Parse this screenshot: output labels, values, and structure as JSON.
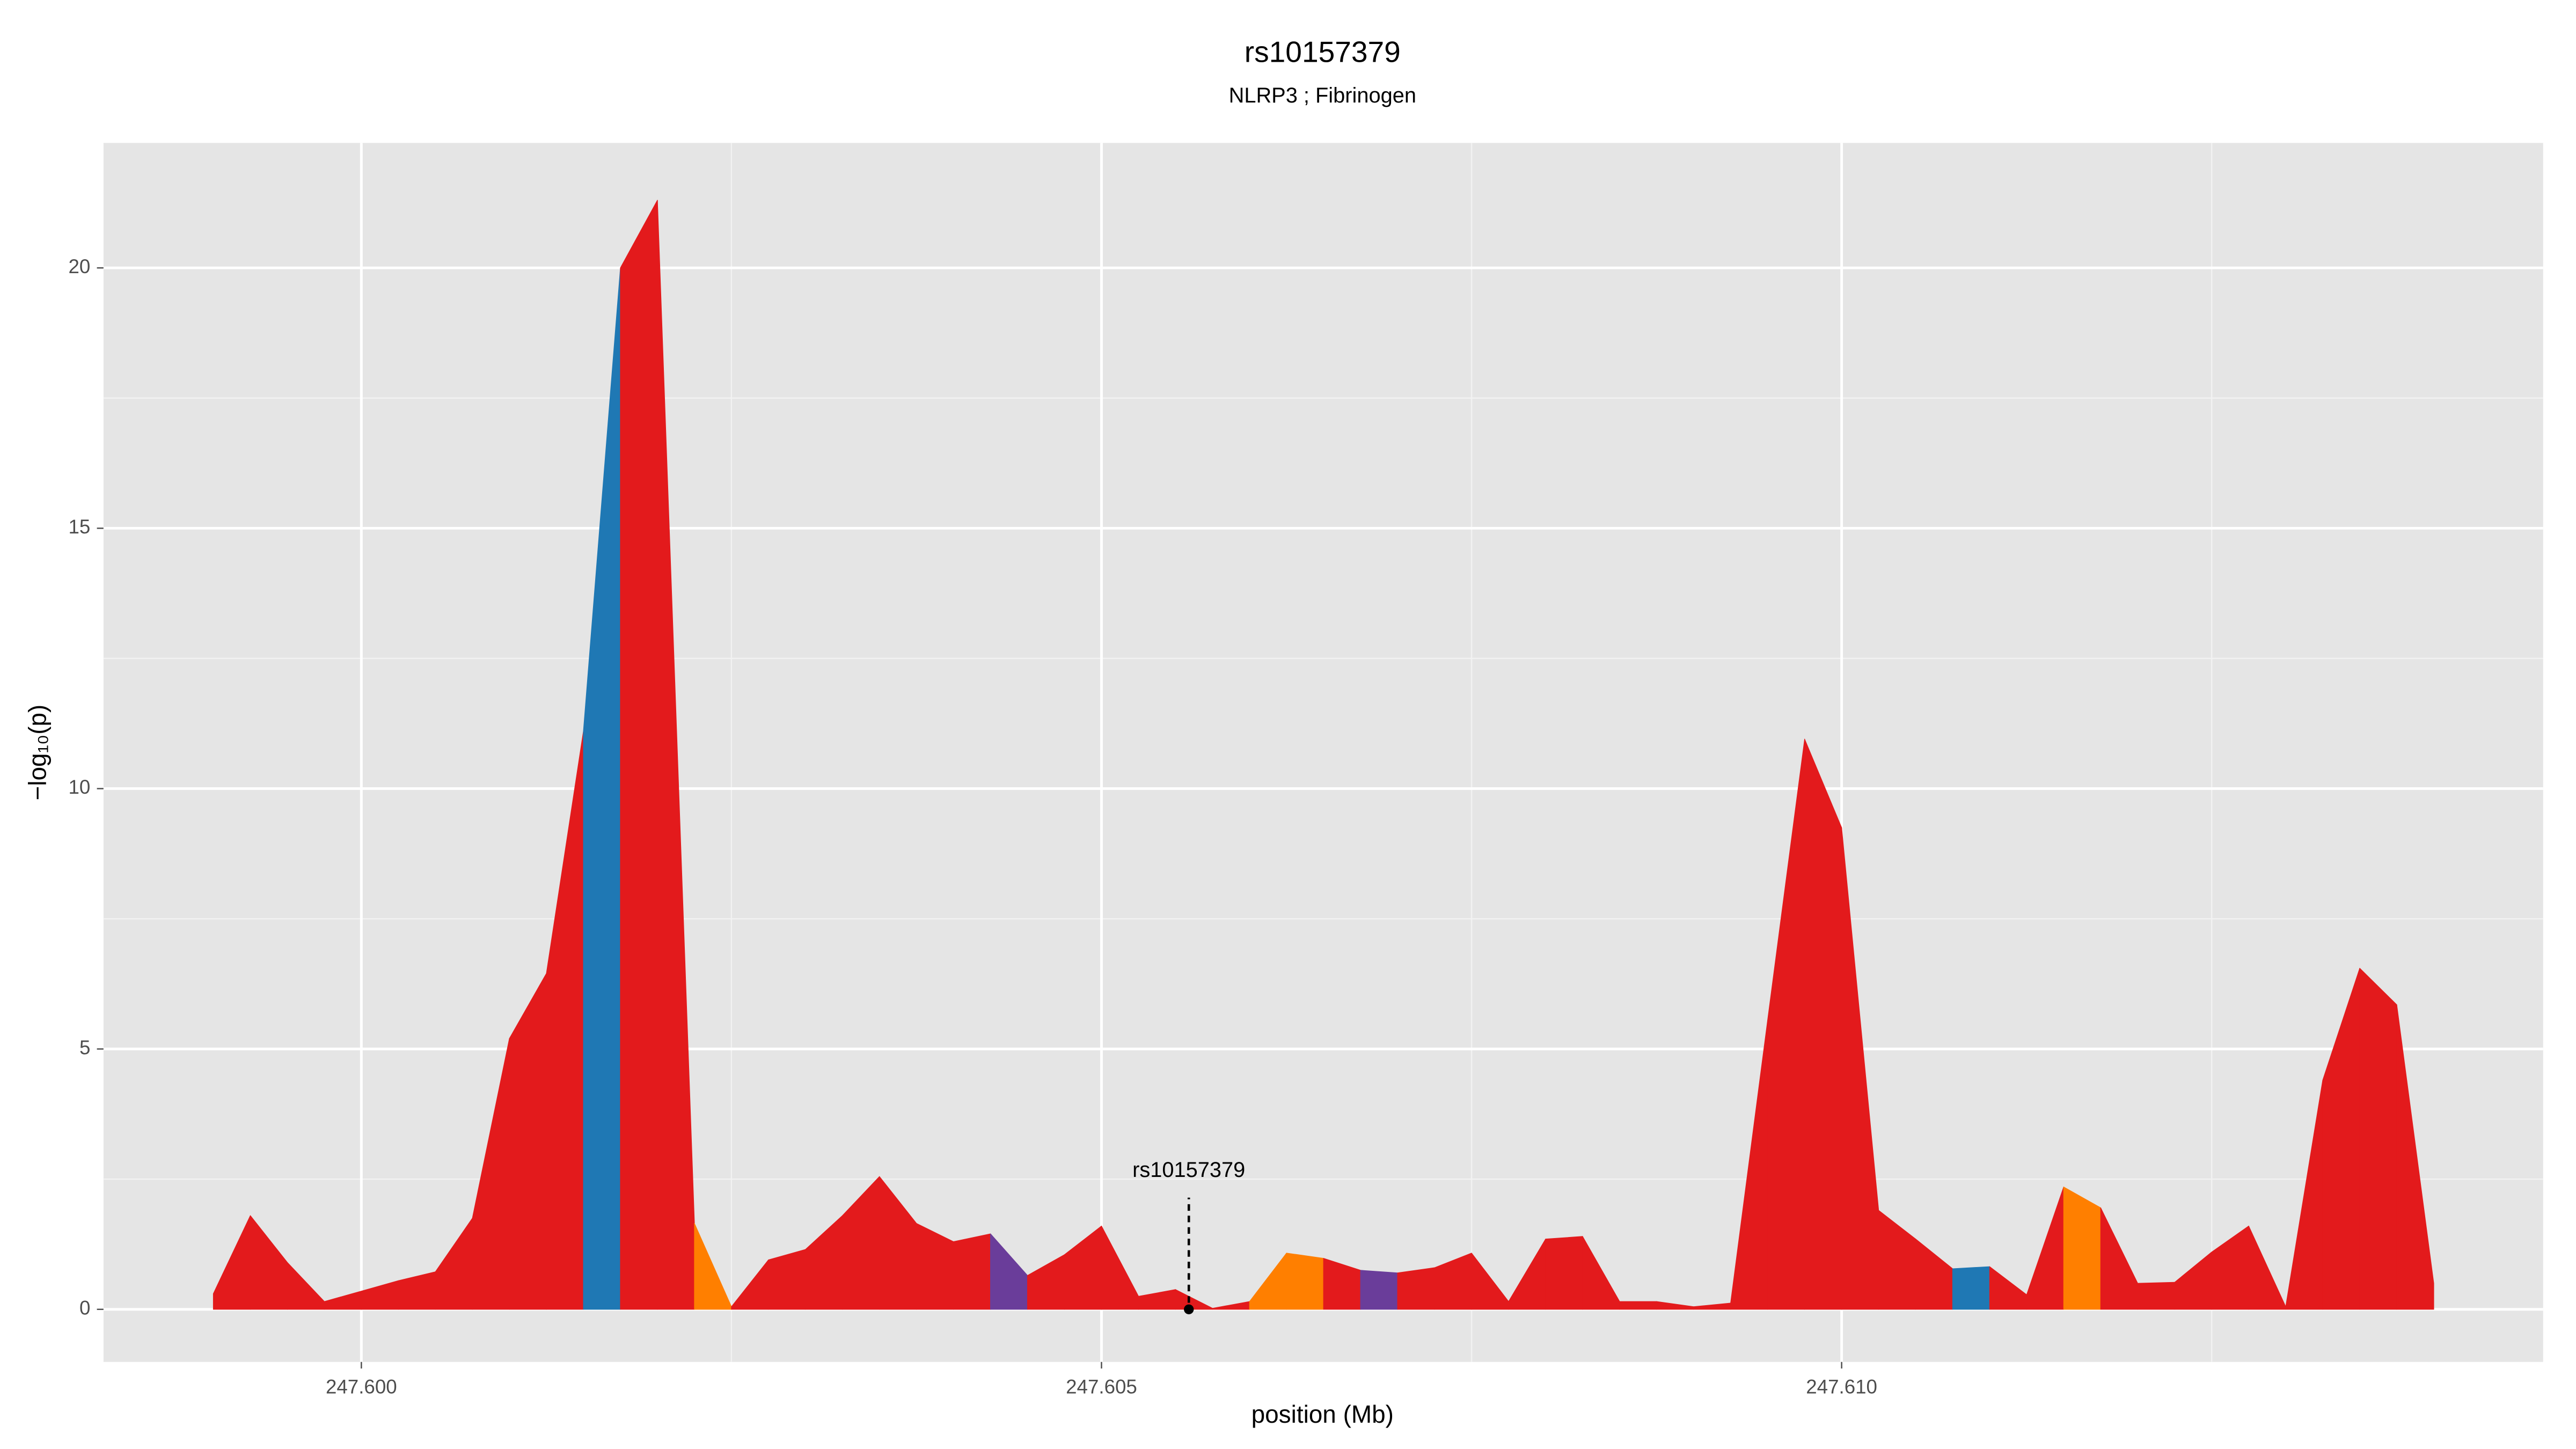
{
  "chart_data": {
    "type": "area",
    "title": "rs10157379",
    "subtitle": "NLRP3 ; Fibrinogen",
    "xlabel": "position (Mb)",
    "ylabel": "−log₁₀(p)",
    "x": [
      247.599,
      247.59925,
      247.5995,
      247.59975,
      247.6,
      247.60025,
      247.6005,
      247.60075,
      247.601,
      247.60125,
      247.6015,
      247.60175,
      247.602,
      247.60225,
      247.6025,
      247.60275,
      247.603,
      247.60325,
      247.6035,
      247.60375,
      247.604,
      247.60425,
      247.6045,
      247.60475,
      247.605,
      247.60525,
      247.6055,
      247.60575,
      247.606,
      247.60625,
      247.6065,
      247.60675,
      247.607,
      247.60725,
      247.6075,
      247.60775,
      247.608,
      247.60825,
      247.6085,
      247.60875,
      247.609,
      247.60925,
      247.6095,
      247.60975,
      247.61,
      247.61025,
      247.6105,
      247.61075,
      247.611,
      247.61125,
      247.6115,
      247.61175,
      247.612,
      247.61225,
      247.6125,
      247.61275,
      247.613,
      247.61325,
      247.6135,
      247.61375,
      247.614
    ],
    "values": [
      0.3,
      1.8,
      0.9,
      0.15,
      0.35,
      0.55,
      0.72,
      1.75,
      5.2,
      6.45,
      11.1,
      20.0,
      21.3,
      1.65,
      0.05,
      0.95,
      1.15,
      1.8,
      2.55,
      1.65,
      1.3,
      1.45,
      0.65,
      1.05,
      1.6,
      0.25,
      0.38,
      0.02,
      0.15,
      1.08,
      0.98,
      0.75,
      0.7,
      0.8,
      1.08,
      0.15,
      1.35,
      1.4,
      0.15,
      0.15,
      0.05,
      0.12,
      5.55,
      10.95,
      9.25,
      1.9,
      1.35,
      0.78,
      0.82,
      0.28,
      2.35,
      1.95,
      0.5,
      0.52,
      1.1,
      1.6,
      0.05,
      4.4,
      6.55,
      5.85,
      0.5
    ],
    "segment_colors": [
      "#e31a1c",
      "#e31a1c",
      "#e31a1c",
      "#e31a1c",
      "#e31a1c",
      "#e31a1c",
      "#e31a1c",
      "#e31a1c",
      "#e31a1c",
      "#e31a1c",
      "#1f78b4",
      "#e31a1c",
      "#e31a1c",
      "#ff7f00",
      "#e31a1c",
      "#e31a1c",
      "#e31a1c",
      "#e31a1c",
      "#e31a1c",
      "#e31a1c",
      "#e31a1c",
      "#6a3d9a",
      "#e31a1c",
      "#e31a1c",
      "#e31a1c",
      "#e31a1c",
      "#e31a1c",
      "#e31a1c",
      "#ff7f00",
      "#ff7f00",
      "#e31a1c",
      "#6a3d9a",
      "#e31a1c",
      "#e31a1c",
      "#e31a1c",
      "#e31a1c",
      "#e31a1c",
      "#e31a1c",
      "#e31a1c",
      "#e31a1c",
      "#e31a1c",
      "#e31a1c",
      "#e31a1c",
      "#e31a1c",
      "#e31a1c",
      "#e31a1c",
      "#e31a1c",
      "#1f78b4",
      "#e31a1c",
      "#e31a1c",
      "#ff7f00",
      "#e31a1c",
      "#e31a1c",
      "#e31a1c",
      "#e31a1c",
      "#e31a1c",
      "#e31a1c",
      "#e31a1c",
      "#e31a1c",
      "#e31a1c"
    ],
    "highlight": {
      "label": "rs10157379",
      "x": 247.60559,
      "y": 0
    },
    "xlim": [
      247.598258,
      247.614739
    ],
    "ylim": [
      -1.01,
      22.4
    ],
    "xticks": [
      {
        "value": 247.6,
        "label": "247.600"
      },
      247.605,
      {
        "value": 247.61,
        "label": "247.610"
      }
    ],
    "xminor": [
      247.6025,
      247.6075,
      247.6125
    ],
    "yticks": [
      0,
      5,
      10,
      15,
      20
    ],
    "yminor": [
      2.5,
      7.5,
      12.5,
      17.5
    ],
    "grid": true
  }
}
